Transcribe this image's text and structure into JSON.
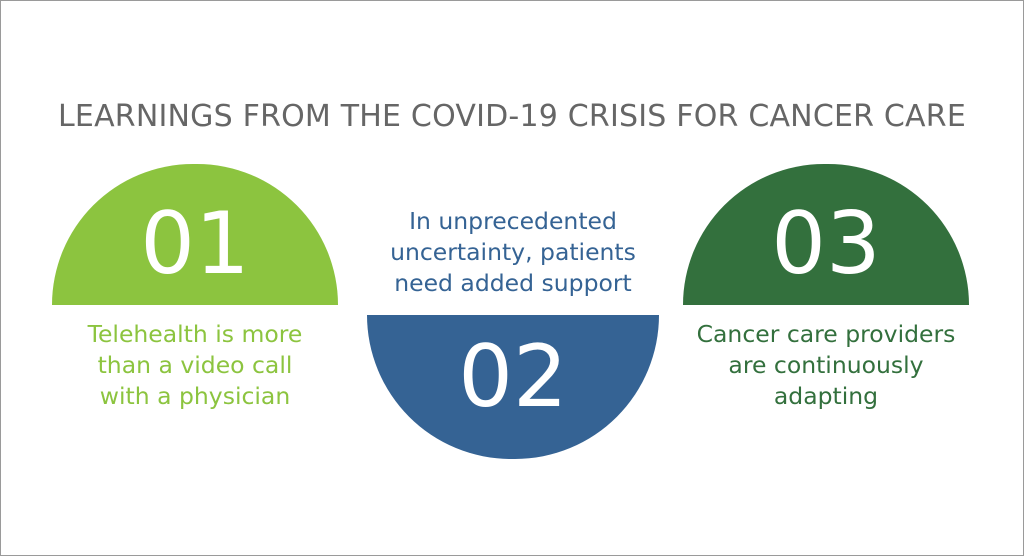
{
  "title": "LEARNINGS FROM THE COVID-19 CRISIS FOR CANCER CARE",
  "items": [
    {
      "number": "01",
      "lines": [
        "Telehealth is more",
        "than a video call",
        "with a physician"
      ],
      "color": "#8cc43f"
    },
    {
      "number": "02",
      "lines": [
        "In unprecedented",
        "uncertainty, patients",
        "need added support"
      ],
      "color": "#356394"
    },
    {
      "number": "03",
      "lines": [
        "Cancer care providers",
        "are continuously",
        "adapting"
      ],
      "color": "#33703d"
    }
  ]
}
